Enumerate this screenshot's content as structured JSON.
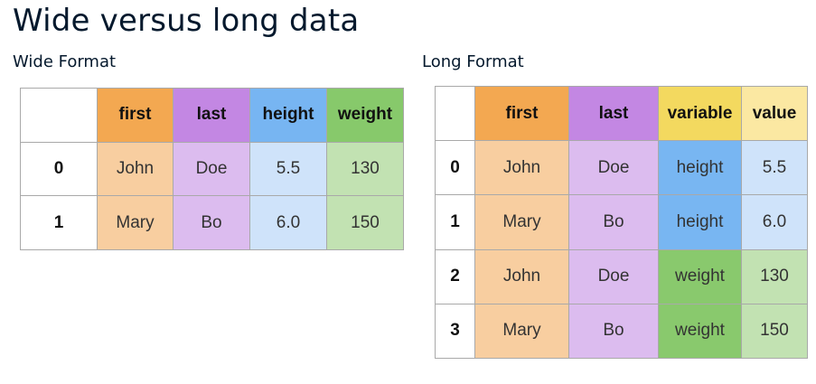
{
  "title": "Wide versus long data",
  "wide": {
    "label": "Wide Format",
    "headers": [
      "first",
      "last",
      "height",
      "weight"
    ],
    "rows": [
      {
        "index": "0",
        "first": "John",
        "last": "Doe",
        "height": "5.5",
        "weight": "130"
      },
      {
        "index": "1",
        "first": "Mary",
        "last": "Bo",
        "height": "6.0",
        "weight": "150"
      }
    ]
  },
  "long": {
    "label": "Long Format",
    "headers": [
      "first",
      "last",
      "variable",
      "value"
    ],
    "rows": [
      {
        "index": "0",
        "first": "John",
        "last": "Doe",
        "variable": "height",
        "value": "5.5"
      },
      {
        "index": "1",
        "first": "Mary",
        "last": "Bo",
        "variable": "height",
        "value": "6.0"
      },
      {
        "index": "2",
        "first": "John",
        "last": "Doe",
        "variable": "weight",
        "value": "130"
      },
      {
        "index": "3",
        "first": "Mary",
        "last": "Bo",
        "variable": "weight",
        "value": "150"
      }
    ]
  },
  "colors": {
    "first_header": "#f3a851",
    "first_cell": "#f8cea0",
    "last_header": "#c387e3",
    "last_cell": "#dcbcef",
    "height_header": "#77b5f2",
    "height_cell": "#cfe3fa",
    "weight_header": "#87c96b",
    "weight_cell": "#c2e2b2",
    "variable_header": "#f3d95f",
    "value_header": "#fbe8a2"
  }
}
